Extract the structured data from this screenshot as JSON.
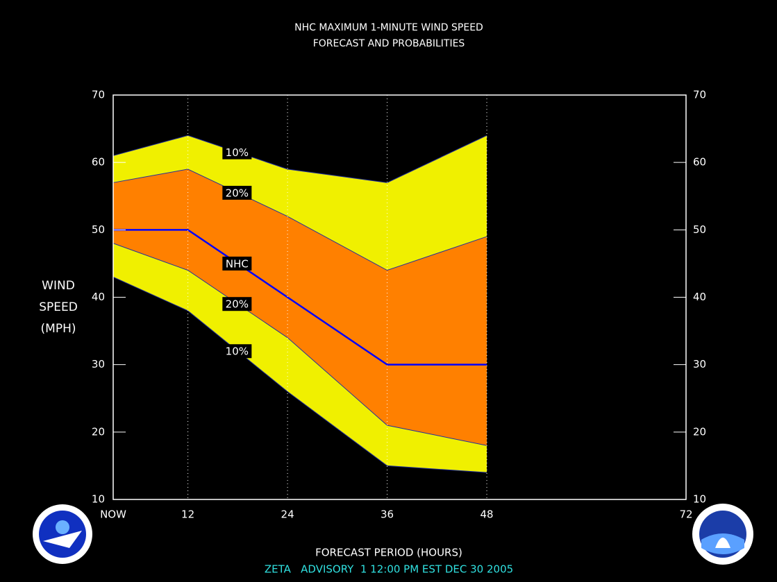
{
  "chart_data": {
    "type": "area-band",
    "title": [
      "NHC MAXIMUM 1-MINUTE WIND SPEED",
      "FORECAST AND PROBABILITIES"
    ],
    "ylabel": [
      "WIND",
      "SPEED",
      "(MPH)"
    ],
    "xlabel": "FORECAST PERIOD (HOURS)",
    "footer": "ZETA   ADVISORY  1 12:00 PM EST DEC 30 2005",
    "x": [
      3,
      12,
      24,
      36,
      48
    ],
    "series": [
      {
        "name": "10%",
        "color": "#f0f000",
        "values": [
          61,
          64,
          59,
          57,
          64
        ]
      },
      {
        "name": "20%",
        "color": "#ff8000",
        "values": [
          57,
          59,
          52,
          44,
          49
        ]
      },
      {
        "name": "NHC",
        "color": "#0000ff",
        "values": [
          50,
          50,
          40,
          30,
          30
        ]
      },
      {
        "name": "20%",
        "color": "#ff8000",
        "values": [
          48,
          44,
          34,
          21,
          18
        ]
      },
      {
        "name": "10%",
        "color": "#f0f000",
        "values": [
          43,
          38,
          26,
          15,
          14
        ]
      }
    ],
    "xlim": [
      3,
      72
    ],
    "xticks": [
      {
        "value": 3,
        "label": "NOW"
      },
      12,
      24,
      36,
      48,
      72
    ],
    "ylim": [
      10,
      70
    ],
    "yticks": [
      10,
      20,
      30,
      40,
      50,
      60,
      70
    ],
    "y2lim": [
      10,
      70
    ],
    "y2ticks": [
      10,
      20,
      30,
      40,
      50,
      60,
      70
    ],
    "xgrid": true
  }
}
